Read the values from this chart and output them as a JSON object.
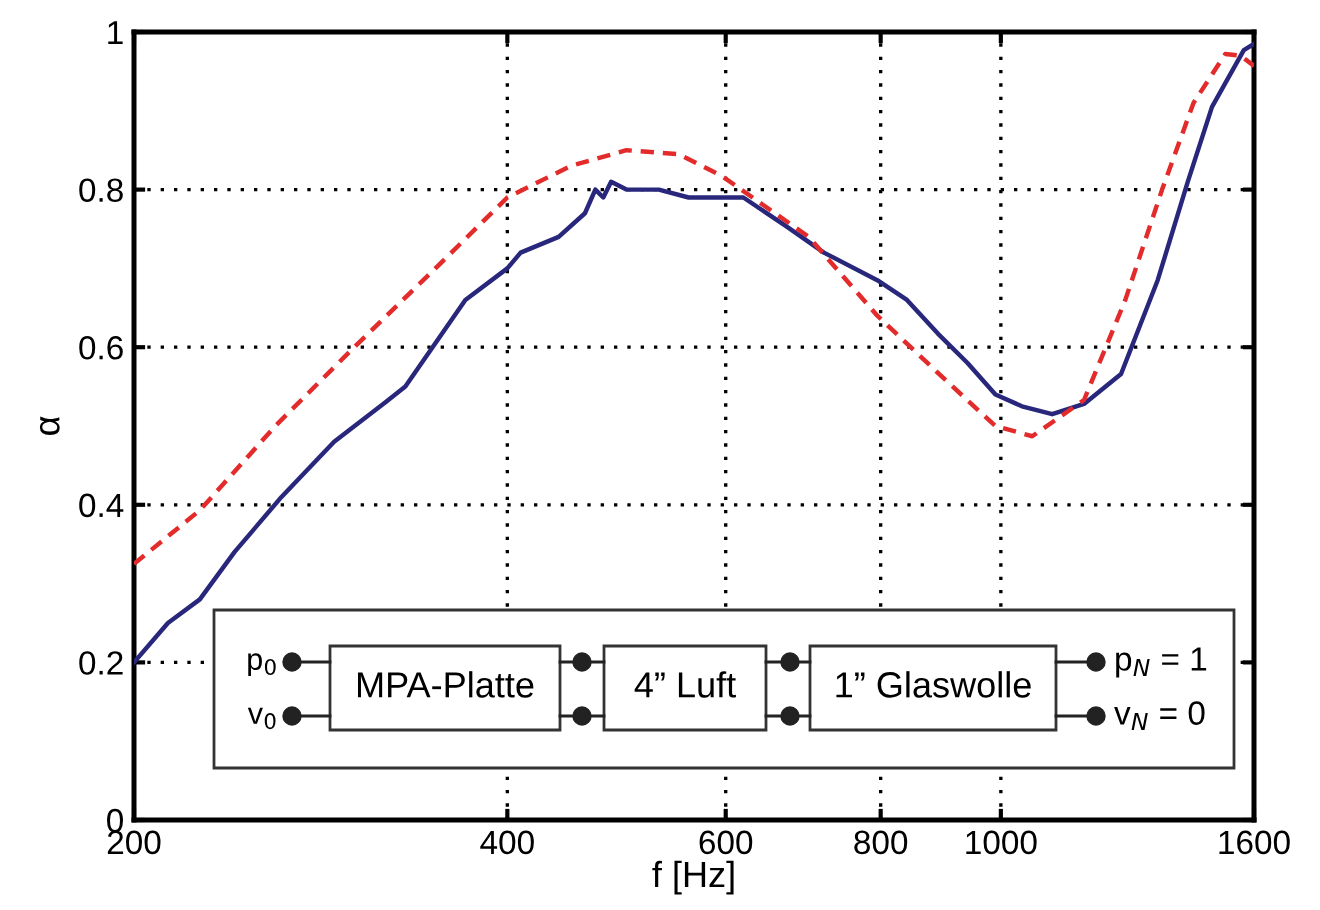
{
  "chart_data": {
    "type": "line",
    "xlabel": "f [Hz]",
    "ylabel": "α",
    "log": "x",
    "xlim": [
      200,
      1600
    ],
    "ylim": [
      0,
      1
    ],
    "xticks": [
      200,
      400,
      600,
      800,
      1000,
      1600
    ],
    "yticks": [
      0,
      0.2,
      0.4,
      0.6,
      0.8,
      1
    ],
    "grid": true,
    "marker": "none",
    "series": [
      {
        "color": "#28277c",
        "line_style": "solid",
        "x": [
          200,
          213,
          226,
          241,
          263,
          290,
          319,
          331,
          370,
          400,
          410,
          440,
          462,
          471,
          478,
          485,
          499,
          530,
          560,
          592,
          620,
          672,
          720,
          795,
          840,
          890,
          940,
          990,
          1040,
          1100,
          1167,
          1250,
          1338,
          1415,
          1480,
          1570,
          1600
        ],
        "values": [
          0.2,
          0.25,
          0.28,
          0.34,
          0.41,
          0.48,
          0.53,
          0.55,
          0.66,
          0.7,
          0.72,
          0.74,
          0.77,
          0.8,
          0.79,
          0.81,
          0.8,
          0.8,
          0.79,
          0.79,
          0.79,
          0.753,
          0.72,
          0.685,
          0.66,
          0.617,
          0.58,
          0.54,
          0.525,
          0.515,
          0.528,
          0.566,
          0.685,
          0.81,
          0.905,
          0.977,
          0.985
        ]
      },
      {
        "color": "#e32b2b",
        "line_style": "dashed",
        "x": [
          200,
          226,
          260,
          301,
          350,
          400,
          450,
          499,
          550,
          596,
          700,
          795,
          900,
          990,
          1060,
          1167,
          1260,
          1349,
          1430,
          1517,
          1560,
          1600
        ],
        "values": [
          0.325,
          0.393,
          0.5,
          0.6,
          0.7,
          0.79,
          0.83,
          0.85,
          0.845,
          0.817,
          0.74,
          0.64,
          0.56,
          0.5,
          0.487,
          0.533,
          0.66,
          0.8,
          0.91,
          0.972,
          0.97,
          0.957
        ]
      }
    ],
    "annotations": [
      "p$_{0}$",
      "v$_{0}$",
      "MPA-Platte",
      "4” Luft",
      "1” Glaswolle",
      "p$_{N}$ = 1",
      "v$_{N}$ = 0"
    ]
  }
}
